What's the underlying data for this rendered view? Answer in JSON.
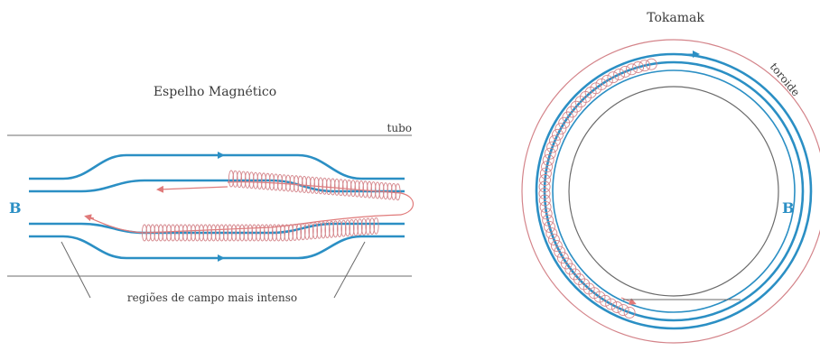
{
  "mirror": {
    "title": "Espelho Magnético",
    "tube_label": "tubo",
    "field_label": "B",
    "regions_label": "regiões de campo mais intenso"
  },
  "tokamak": {
    "title": "Tokamak",
    "toroid_label": "toroide",
    "field_label": "B"
  },
  "colors": {
    "field_lines": "#2b8fc4",
    "particle_path": "#e07a7a",
    "tube": "#8a8a8a",
    "text": "#3a3a3a"
  }
}
